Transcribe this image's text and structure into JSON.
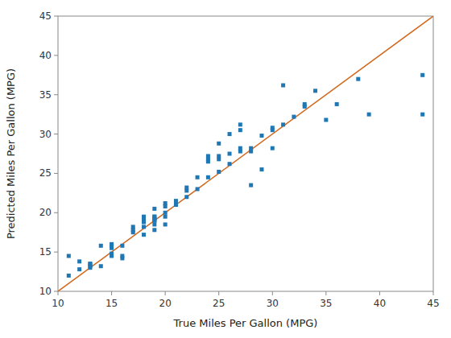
{
  "chart_data": {
    "type": "scatter",
    "xlabel": "True Miles Per Gallon (MPG)",
    "ylabel": "Predicted Miles Per Gallon (MPG)",
    "xlim": [
      10,
      45
    ],
    "ylim": [
      10,
      45
    ],
    "xticks": [
      10,
      15,
      20,
      25,
      30,
      35,
      40,
      45
    ],
    "yticks": [
      10,
      15,
      20,
      25,
      30,
      35,
      40,
      45
    ],
    "grid": false,
    "series": [
      {
        "type": "scatter",
        "color": "#1f77b4",
        "marker": "square",
        "x": [
          11,
          11,
          12,
          12,
          13,
          13,
          13,
          13,
          14,
          14,
          15,
          15,
          15,
          15,
          15,
          16,
          16,
          16,
          17,
          17,
          17,
          18,
          18,
          18,
          18,
          18,
          18,
          19,
          19,
          19,
          19,
          19,
          19,
          19,
          19,
          20,
          20,
          20,
          20,
          20,
          21,
          21,
          22,
          22,
          22,
          23,
          23,
          24,
          24,
          24,
          24,
          25,
          25,
          25,
          25,
          26,
          26,
          26,
          27,
          27,
          27,
          27,
          28,
          28,
          28,
          29,
          29,
          30,
          30,
          30,
          31,
          31,
          32,
          33,
          33,
          34,
          35,
          36,
          38,
          39,
          44,
          44
        ],
        "values": [
          14.5,
          12.0,
          13.8,
          12.8,
          13.5,
          13.5,
          13.2,
          13.0,
          15.8,
          13.2,
          15.5,
          16.0,
          15.8,
          14.8,
          14.5,
          15.8,
          14.2,
          14.5,
          18.2,
          17.8,
          17.5,
          19.5,
          18.8,
          18.2,
          19.0,
          19.2,
          17.2,
          19.5,
          19.5,
          19.0,
          19.0,
          18.5,
          20.5,
          19.2,
          17.8,
          21.2,
          20.8,
          19.5,
          20.0,
          18.5,
          21.5,
          21.0,
          22.8,
          22.0,
          23.2,
          24.5,
          23.0,
          26.8,
          26.5,
          27.2,
          24.5,
          25.2,
          26.8,
          27.2,
          28.8,
          27.5,
          26.2,
          30.0,
          27.8,
          28.2,
          30.5,
          31.2,
          27.8,
          28.2,
          23.5,
          29.8,
          25.5,
          30.5,
          30.8,
          28.2,
          36.2,
          31.2,
          32.2,
          33.5,
          33.8,
          35.5,
          31.8,
          33.8,
          37.0,
          32.5,
          37.5,
          32.5
        ]
      },
      {
        "type": "line",
        "color": "#d2691e",
        "x": [
          10,
          45
        ],
        "values": [
          10,
          45
        ]
      }
    ]
  }
}
